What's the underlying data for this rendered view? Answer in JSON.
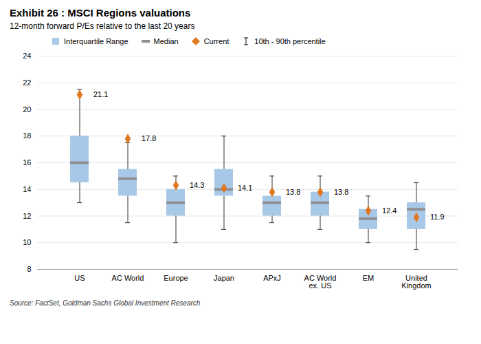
{
  "chart_data": {
    "type": "box",
    "title": "Exhibit 26 : MSCI Regions valuations",
    "subtitle": "12-month forward P/Es relative to the last 20 years",
    "source": "Source: FactSet, Goldman Sachs Global Investment Research",
    "categories": [
      "US",
      "AC World",
      "Europe",
      "Japan",
      "APxJ",
      "AC World\nex. US",
      "EM",
      "United\nKingdom"
    ],
    "series": [
      {
        "name": "Interquartile Range",
        "type": "bar",
        "color": "#a8c8e8",
        "low": [
          14.5,
          13.5,
          12.0,
          13.5,
          12.0,
          12.0,
          11.0,
          11.0
        ],
        "high": [
          18.0,
          15.5,
          14.0,
          15.5,
          13.5,
          13.8,
          12.5,
          13.0
        ]
      },
      {
        "name": "Median",
        "type": "tick",
        "color": "#909090",
        "values": [
          16.0,
          14.8,
          13.0,
          14.0,
          13.0,
          13.0,
          11.8,
          12.5
        ]
      },
      {
        "name": "Current",
        "type": "scatter",
        "marker": "diamond",
        "color": "#e07820",
        "data_labels": true,
        "values": [
          21.1,
          17.8,
          14.3,
          14.1,
          13.8,
          13.8,
          12.4,
          11.9
        ]
      },
      {
        "name": "10th - 90th percentile",
        "type": "errorbar",
        "color": "#333333",
        "low": [
          13.0,
          11.5,
          10.0,
          11.0,
          11.5,
          11.0,
          10.0,
          9.5
        ],
        "high": [
          21.5,
          17.5,
          15.0,
          18.0,
          15.0,
          15.0,
          13.5,
          14.5
        ]
      }
    ],
    "ylim": [
      8,
      24
    ],
    "yticks": [
      8,
      10,
      12,
      14,
      16,
      18,
      20,
      22,
      24
    ],
    "grid": true,
    "legend": "upper left"
  }
}
